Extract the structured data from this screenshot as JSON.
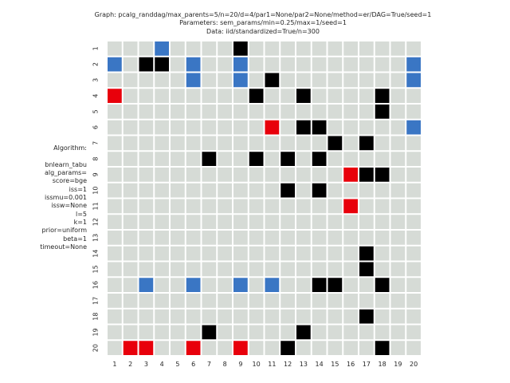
{
  "title_lines": [
    "Graph: pcalg_randdag/max_parents=5/n=20/d=4/par1=None/par2=None/method=er/DAG=True/seed=1",
    "Parameters: sem_params/min=0.25/max=1/seed=1",
    "Data: iid/standardized=True/n=300"
  ],
  "algorithm_lines": [
    "Algorithm:",
    "",
    "bnlearn_tabu",
    "alg_params=",
    "score=bge",
    "iss=1",
    "issmu=0.001",
    "issw=None",
    "l=5",
    "k=1",
    "prior=uniform",
    "beta=1",
    "timeout=None"
  ],
  "colors": {
    "empty": "#d6dbd6",
    "black": "#000000",
    "blue": "#3a76c4",
    "red": "#e8000b",
    "gridline": "#ffffff"
  },
  "chart_data": {
    "type": "heatmap",
    "x_ticks": [
      "1",
      "2",
      "3",
      "4",
      "5",
      "6",
      "7",
      "8",
      "9",
      "10",
      "11",
      "12",
      "13",
      "14",
      "15",
      "16",
      "17",
      "18",
      "19",
      "20"
    ],
    "y_ticks": [
      "1",
      "2",
      "3",
      "4",
      "5",
      "6",
      "7",
      "8",
      "9",
      "10",
      "11",
      "12",
      "13",
      "14",
      "15",
      "16",
      "17",
      "18",
      "19",
      "20"
    ],
    "legend": "none",
    "cells": [
      {
        "row": 1,
        "col": 4,
        "kind": "blue"
      },
      {
        "row": 1,
        "col": 9,
        "kind": "black"
      },
      {
        "row": 2,
        "col": 1,
        "kind": "blue"
      },
      {
        "row": 2,
        "col": 3,
        "kind": "black"
      },
      {
        "row": 2,
        "col": 4,
        "kind": "black"
      },
      {
        "row": 2,
        "col": 6,
        "kind": "blue"
      },
      {
        "row": 2,
        "col": 9,
        "kind": "blue"
      },
      {
        "row": 2,
        "col": 20,
        "kind": "blue"
      },
      {
        "row": 3,
        "col": 6,
        "kind": "blue"
      },
      {
        "row": 3,
        "col": 9,
        "kind": "blue"
      },
      {
        "row": 3,
        "col": 11,
        "kind": "black"
      },
      {
        "row": 3,
        "col": 20,
        "kind": "blue"
      },
      {
        "row": 4,
        "col": 1,
        "kind": "red"
      },
      {
        "row": 4,
        "col": 10,
        "kind": "black"
      },
      {
        "row": 4,
        "col": 13,
        "kind": "black"
      },
      {
        "row": 4,
        "col": 18,
        "kind": "black"
      },
      {
        "row": 5,
        "col": 18,
        "kind": "black"
      },
      {
        "row": 6,
        "col": 11,
        "kind": "red"
      },
      {
        "row": 6,
        "col": 13,
        "kind": "black"
      },
      {
        "row": 6,
        "col": 14,
        "kind": "black"
      },
      {
        "row": 6,
        "col": 20,
        "kind": "blue"
      },
      {
        "row": 7,
        "col": 15,
        "kind": "black"
      },
      {
        "row": 7,
        "col": 17,
        "kind": "black"
      },
      {
        "row": 8,
        "col": 7,
        "kind": "black"
      },
      {
        "row": 8,
        "col": 10,
        "kind": "black"
      },
      {
        "row": 8,
        "col": 12,
        "kind": "black"
      },
      {
        "row": 8,
        "col": 14,
        "kind": "black"
      },
      {
        "row": 9,
        "col": 16,
        "kind": "red"
      },
      {
        "row": 9,
        "col": 17,
        "kind": "black"
      },
      {
        "row": 9,
        "col": 18,
        "kind": "black"
      },
      {
        "row": 10,
        "col": 12,
        "kind": "black"
      },
      {
        "row": 10,
        "col": 14,
        "kind": "black"
      },
      {
        "row": 11,
        "col": 16,
        "kind": "red"
      },
      {
        "row": 14,
        "col": 17,
        "kind": "black"
      },
      {
        "row": 15,
        "col": 17,
        "kind": "black"
      },
      {
        "row": 16,
        "col": 3,
        "kind": "blue"
      },
      {
        "row": 16,
        "col": 6,
        "kind": "blue"
      },
      {
        "row": 16,
        "col": 9,
        "kind": "blue"
      },
      {
        "row": 16,
        "col": 11,
        "kind": "blue"
      },
      {
        "row": 16,
        "col": 14,
        "kind": "black"
      },
      {
        "row": 16,
        "col": 15,
        "kind": "black"
      },
      {
        "row": 16,
        "col": 18,
        "kind": "black"
      },
      {
        "row": 18,
        "col": 17,
        "kind": "black"
      },
      {
        "row": 19,
        "col": 7,
        "kind": "black"
      },
      {
        "row": 19,
        "col": 13,
        "kind": "black"
      },
      {
        "row": 20,
        "col": 2,
        "kind": "red"
      },
      {
        "row": 20,
        "col": 3,
        "kind": "red"
      },
      {
        "row": 20,
        "col": 6,
        "kind": "red"
      },
      {
        "row": 20,
        "col": 9,
        "kind": "red"
      },
      {
        "row": 20,
        "col": 12,
        "kind": "black"
      },
      {
        "row": 20,
        "col": 18,
        "kind": "black"
      }
    ]
  }
}
